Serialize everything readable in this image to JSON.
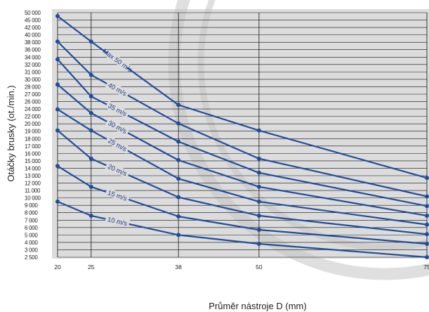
{
  "colors": {
    "plot_background": "#dcdcdc",
    "grid": "#111111",
    "series": "#1f4e9c",
    "watermark_arc": "#c4c4c4"
  },
  "chart_data": {
    "type": "line",
    "xlabel": "Průměr nástroje D (mm)",
    "ylabel": "Otáčky brusky (ot./min.)",
    "x_ticks": [
      20,
      25,
      38,
      50,
      75
    ],
    "y_ticks": [
      2500,
      3000,
      4000,
      5000,
      6000,
      7000,
      8000,
      9000,
      10000,
      11000,
      12000,
      13000,
      14000,
      15000,
      16000,
      17000,
      18000,
      19000,
      20000,
      22000,
      24000,
      26000,
      27000,
      28000,
      30000,
      31000,
      32000,
      34000,
      36000,
      38000,
      40000,
      42000,
      45000,
      50000
    ],
    "y_tick_labels": [
      "2 500",
      "3 000",
      "4 000",
      "5 000",
      "6 000",
      "7 000",
      "8 000",
      "9 000",
      "10 000",
      "11 000",
      "12 000",
      "13 000",
      "14 000",
      "15 000",
      "16 000",
      "17 000",
      "18 000",
      "19 000",
      "20 000",
      "22 000",
      "24 000",
      "26 000",
      "27 000",
      "28 000",
      "30 000",
      "31 000",
      "32 000",
      "34 000",
      "36 000",
      "38 000",
      "40 000",
      "42 000",
      "45 000",
      "50 000"
    ],
    "grid": true,
    "series": [
      {
        "name": "Max 50 m/s",
        "x": [
          20,
          25,
          38,
          50,
          75
        ],
        "y": [
          47700,
          38200,
          25100,
          19100,
          12700
        ]
      },
      {
        "name": "40 m/s",
        "x": [
          20,
          25,
          38,
          50,
          75
        ],
        "y": [
          38200,
          30600,
          20100,
          15300,
          10200
        ]
      },
      {
        "name": "35 m/s",
        "x": [
          20,
          25,
          38,
          50,
          75
        ],
        "y": [
          33400,
          26700,
          17600,
          13400,
          8900
        ]
      },
      {
        "name": "30 m/s",
        "x": [
          20,
          25,
          38,
          50,
          75
        ],
        "y": [
          28600,
          22900,
          15100,
          11500,
          7600
        ]
      },
      {
        "name": "25 m/s",
        "x": [
          20,
          25,
          38,
          50,
          75
        ],
        "y": [
          23900,
          19100,
          12600,
          9500,
          6400
        ]
      },
      {
        "name": "20 m/s",
        "x": [
          20,
          25,
          38,
          50,
          75
        ],
        "y": [
          19100,
          15300,
          10100,
          7600,
          5100
        ]
      },
      {
        "name": "15 m/s",
        "x": [
          20,
          25,
          38,
          50,
          75
        ],
        "y": [
          14300,
          11500,
          7500,
          5700,
          3800
        ]
      },
      {
        "name": "10 m/s",
        "x": [
          20,
          25,
          38,
          50,
          75
        ],
        "y": [
          9500,
          7600,
          5000,
          3800,
          2500
        ]
      }
    ]
  }
}
